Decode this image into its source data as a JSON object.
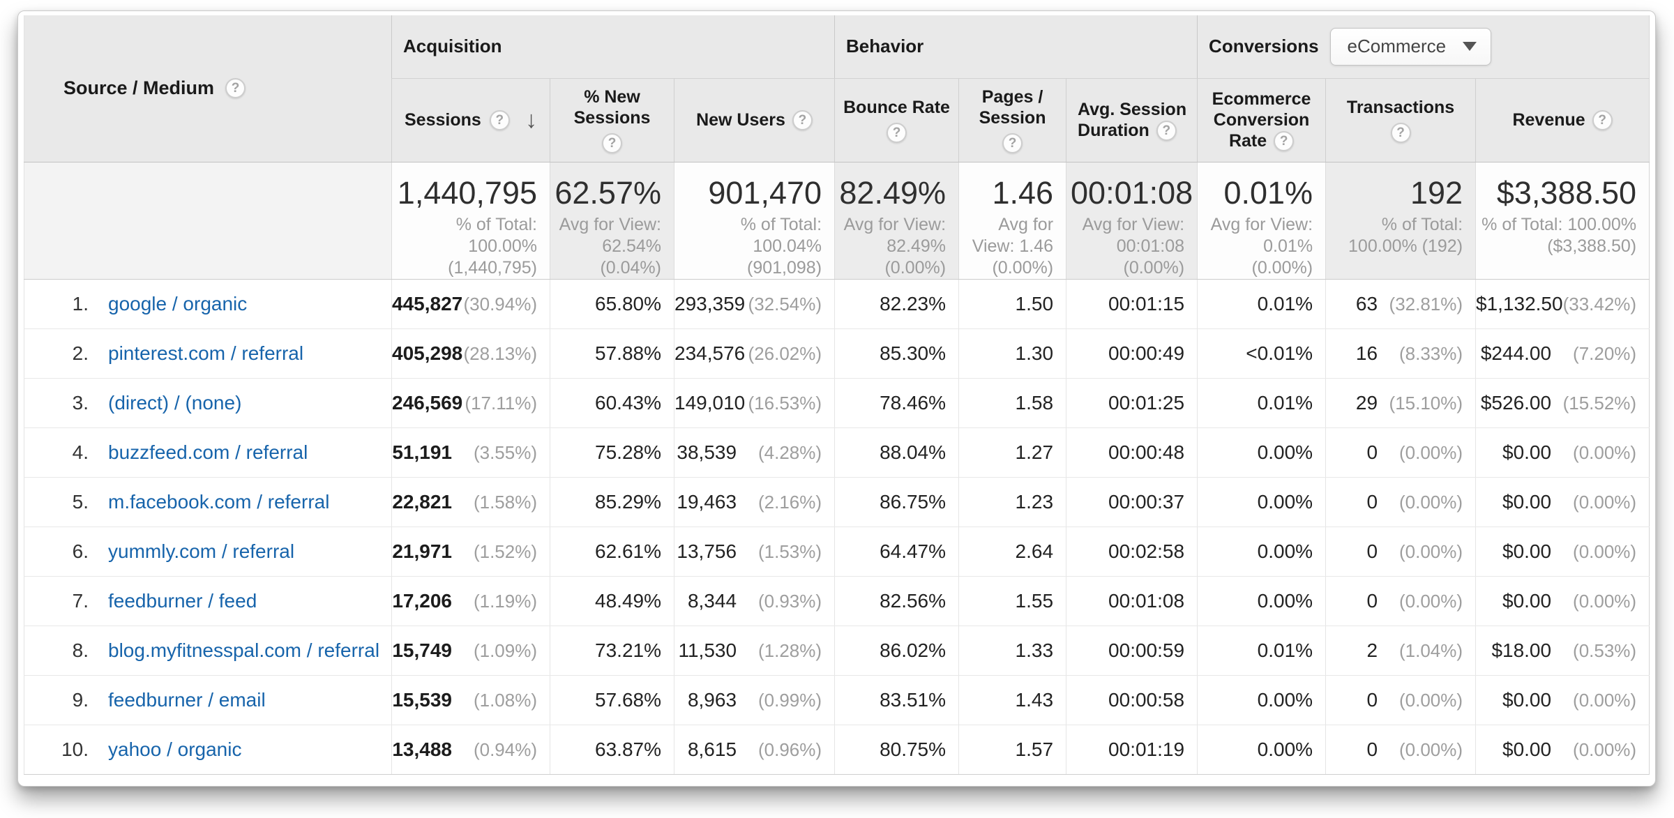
{
  "colors": {
    "link": "#1764ab",
    "header_bg": "#e9e9e9",
    "summary_alt_bg": "#ececec"
  },
  "icons": {
    "help": "?",
    "sort_desc": "↓"
  },
  "table": {
    "dimension_header": {
      "label": "Source / Medium"
    },
    "groups": [
      {
        "label": "Acquisition"
      },
      {
        "label": "Behavior"
      },
      {
        "label": "Conversions"
      }
    ],
    "conversions_selector": {
      "value": "eCommerce"
    },
    "columns": [
      {
        "label": "Sessions"
      },
      {
        "label": "% New Sessions"
      },
      {
        "label": "New Users"
      },
      {
        "label": "Bounce Rate"
      },
      {
        "label": "Pages / Session"
      },
      {
        "label": "Avg. Session Duration"
      },
      {
        "label": "Ecommerce Conversion Rate"
      },
      {
        "label": "Transactions"
      },
      {
        "label": "Revenue"
      }
    ],
    "summary": {
      "sessions": "1,440,795",
      "sessions_note": "% of Total: 100.00% (1,440,795)",
      "pct_new_sessions": "62.57%",
      "pct_new_sessions_note": "Avg for View: 62.54% (0.04%)",
      "new_users": "901,470",
      "new_users_note": "% of Total: 100.04% (901,098)",
      "bounce_rate": "82.49%",
      "bounce_rate_note": "Avg for View: 82.49% (0.00%)",
      "pages_session": "1.46",
      "pages_session_note": "Avg for View: 1.46 (0.00%)",
      "avg_duration": "00:01:08",
      "avg_duration_note": "Avg for View: 00:01:08 (0.00%)",
      "ecom_rate": "0.01%",
      "ecom_rate_note": "Avg for View: 0.01% (0.00%)",
      "transactions": "192",
      "transactions_note": "% of Total: 100.00% (192)",
      "revenue": "$3,388.50",
      "revenue_note": "% of Total: 100.00% ($3,388.50)"
    },
    "rows": [
      {
        "num": "1.",
        "source": "google / organic",
        "sessions": "445,827",
        "sessions_share": "(30.94%)",
        "pct_new_sessions": "65.80%",
        "new_users": "293,359",
        "new_users_share": "(32.54%)",
        "bounce_rate": "82.23%",
        "pages_session": "1.50",
        "avg_duration": "00:01:15",
        "ecom_rate": "0.01%",
        "transactions": "63",
        "transactions_share": "(32.81%)",
        "revenue": "$1,132.50",
        "revenue_share": "(33.42%)"
      },
      {
        "num": "2.",
        "source": "pinterest.com / referral",
        "sessions": "405,298",
        "sessions_share": "(28.13%)",
        "pct_new_sessions": "57.88%",
        "new_users": "234,576",
        "new_users_share": "(26.02%)",
        "bounce_rate": "85.30%",
        "pages_session": "1.30",
        "avg_duration": "00:00:49",
        "ecom_rate": "<0.01%",
        "transactions": "16",
        "transactions_share": "(8.33%)",
        "revenue": "$244.00",
        "revenue_share": "(7.20%)"
      },
      {
        "num": "3.",
        "source": "(direct) / (none)",
        "sessions": "246,569",
        "sessions_share": "(17.11%)",
        "pct_new_sessions": "60.43%",
        "new_users": "149,010",
        "new_users_share": "(16.53%)",
        "bounce_rate": "78.46%",
        "pages_session": "1.58",
        "avg_duration": "00:01:25",
        "ecom_rate": "0.01%",
        "transactions": "29",
        "transactions_share": "(15.10%)",
        "revenue": "$526.00",
        "revenue_share": "(15.52%)"
      },
      {
        "num": "4.",
        "source": "buzzfeed.com / referral",
        "sessions": "51,191",
        "sessions_share": "(3.55%)",
        "pct_new_sessions": "75.28%",
        "new_users": "38,539",
        "new_users_share": "(4.28%)",
        "bounce_rate": "88.04%",
        "pages_session": "1.27",
        "avg_duration": "00:00:48",
        "ecom_rate": "0.00%",
        "transactions": "0",
        "transactions_share": "(0.00%)",
        "revenue": "$0.00",
        "revenue_share": "(0.00%)"
      },
      {
        "num": "5.",
        "source": "m.facebook.com / referral",
        "sessions": "22,821",
        "sessions_share": "(1.58%)",
        "pct_new_sessions": "85.29%",
        "new_users": "19,463",
        "new_users_share": "(2.16%)",
        "bounce_rate": "86.75%",
        "pages_session": "1.23",
        "avg_duration": "00:00:37",
        "ecom_rate": "0.00%",
        "transactions": "0",
        "transactions_share": "(0.00%)",
        "revenue": "$0.00",
        "revenue_share": "(0.00%)"
      },
      {
        "num": "6.",
        "source": "yummly.com / referral",
        "sessions": "21,971",
        "sessions_share": "(1.52%)",
        "pct_new_sessions": "62.61%",
        "new_users": "13,756",
        "new_users_share": "(1.53%)",
        "bounce_rate": "64.47%",
        "pages_session": "2.64",
        "avg_duration": "00:02:58",
        "ecom_rate": "0.00%",
        "transactions": "0",
        "transactions_share": "(0.00%)",
        "revenue": "$0.00",
        "revenue_share": "(0.00%)"
      },
      {
        "num": "7.",
        "source": "feedburner / feed",
        "sessions": "17,206",
        "sessions_share": "(1.19%)",
        "pct_new_sessions": "48.49%",
        "new_users": "8,344",
        "new_users_share": "(0.93%)",
        "bounce_rate": "82.56%",
        "pages_session": "1.55",
        "avg_duration": "00:01:08",
        "ecom_rate": "0.00%",
        "transactions": "0",
        "transactions_share": "(0.00%)",
        "revenue": "$0.00",
        "revenue_share": "(0.00%)"
      },
      {
        "num": "8.",
        "source": "blog.myfitnesspal.com / referral",
        "sessions": "15,749",
        "sessions_share": "(1.09%)",
        "pct_new_sessions": "73.21%",
        "new_users": "11,530",
        "new_users_share": "(1.28%)",
        "bounce_rate": "86.02%",
        "pages_session": "1.33",
        "avg_duration": "00:00:59",
        "ecom_rate": "0.01%",
        "transactions": "2",
        "transactions_share": "(1.04%)",
        "revenue": "$18.00",
        "revenue_share": "(0.53%)"
      },
      {
        "num": "9.",
        "source": "feedburner / email",
        "sessions": "15,539",
        "sessions_share": "(1.08%)",
        "pct_new_sessions": "57.68%",
        "new_users": "8,963",
        "new_users_share": "(0.99%)",
        "bounce_rate": "83.51%",
        "pages_session": "1.43",
        "avg_duration": "00:00:58",
        "ecom_rate": "0.00%",
        "transactions": "0",
        "transactions_share": "(0.00%)",
        "revenue": "$0.00",
        "revenue_share": "(0.00%)"
      },
      {
        "num": "10.",
        "source": "yahoo / organic",
        "sessions": "13,488",
        "sessions_share": "(0.94%)",
        "pct_new_sessions": "63.87%",
        "new_users": "8,615",
        "new_users_share": "(0.96%)",
        "bounce_rate": "80.75%",
        "pages_session": "1.57",
        "avg_duration": "00:01:19",
        "ecom_rate": "0.00%",
        "transactions": "0",
        "transactions_share": "(0.00%)",
        "revenue": "$0.00",
        "revenue_share": "(0.00%)"
      }
    ]
  }
}
